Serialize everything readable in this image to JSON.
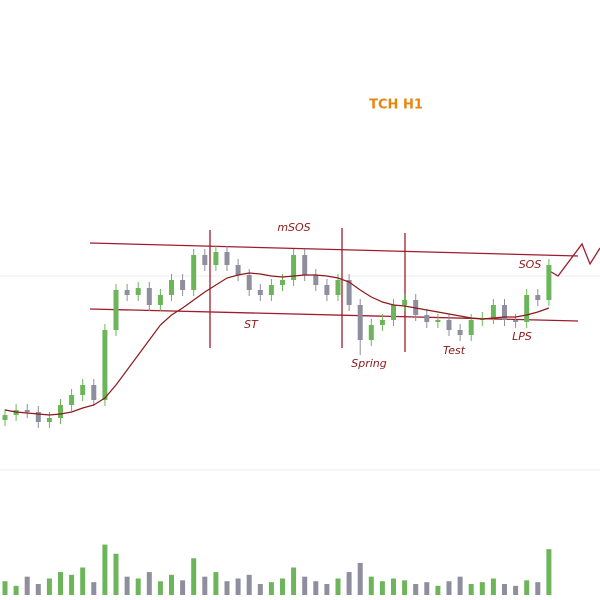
{
  "chart_data": {
    "type": "candlestick",
    "title": "TCH H1",
    "annotations": [
      "mSOS",
      "ST",
      "Spring",
      "Test",
      "LPS",
      "SOS"
    ],
    "ylim": [
      0,
      300
    ],
    "open": [
      60,
      65,
      70,
      68,
      58,
      62,
      75,
      85,
      95,
      80,
      150,
      190,
      185,
      192,
      175,
      185,
      200,
      190,
      225,
      215,
      228,
      215,
      205,
      190,
      185,
      195,
      200,
      225,
      205,
      195,
      185,
      200,
      175,
      140,
      155,
      160,
      175,
      180,
      165,
      158,
      160,
      150,
      145,
      160,
      162,
      175,
      160,
      158,
      185,
      180
    ],
    "high": [
      71,
      76,
      76,
      74,
      68,
      81,
      91,
      101,
      101,
      156,
      196,
      196,
      198,
      198,
      191,
      206,
      206,
      231,
      231,
      234,
      234,
      221,
      211,
      196,
      201,
      206,
      231,
      231,
      211,
      201,
      206,
      206,
      181,
      161,
      166,
      181,
      186,
      186,
      171,
      166,
      166,
      156,
      166,
      168,
      181,
      181,
      166,
      191,
      191,
      221
    ],
    "low": [
      54,
      59,
      62,
      52,
      52,
      56,
      69,
      79,
      74,
      74,
      144,
      179,
      179,
      169,
      169,
      179,
      184,
      184,
      209,
      209,
      209,
      199,
      184,
      179,
      179,
      189,
      194,
      199,
      189,
      179,
      179,
      169,
      125,
      134,
      149,
      154,
      169,
      159,
      152,
      152,
      144,
      139,
      139,
      154,
      156,
      154,
      152,
      152,
      174,
      174
    ],
    "close": [
      65,
      70,
      68,
      58,
      62,
      75,
      85,
      95,
      80,
      150,
      190,
      185,
      192,
      175,
      185,
      200,
      190,
      225,
      215,
      228,
      215,
      205,
      190,
      185,
      195,
      200,
      225,
      205,
      195,
      185,
      200,
      175,
      140,
      155,
      160,
      175,
      180,
      165,
      158,
      160,
      150,
      145,
      160,
      162,
      175,
      160,
      158,
      185,
      180,
      215
    ],
    "ma": [
      70,
      68,
      67,
      66,
      65,
      66,
      68,
      72,
      75,
      82,
      95,
      110,
      125,
      140,
      155,
      165,
      172,
      180,
      188,
      195,
      202,
      205,
      207,
      206,
      204,
      203,
      204,
      205,
      205,
      204,
      202,
      198,
      190,
      183,
      178,
      175,
      174,
      172,
      170,
      168,
      166,
      164,
      162,
      161,
      162,
      163,
      163,
      165,
      168,
      172
    ],
    "ma_color": "#8b1a1a",
    "volume": [
      15,
      10,
      20,
      12,
      18,
      25,
      22,
      30,
      14,
      55,
      45,
      20,
      18,
      25,
      15,
      22,
      16,
      40,
      20,
      25,
      15,
      18,
      22,
      12,
      14,
      18,
      30,
      20,
      15,
      12,
      18,
      25,
      35,
      20,
      15,
      18,
      16,
      12,
      14,
      10,
      15,
      20,
      12,
      14,
      18,
      12,
      10,
      16,
      14,
      50
    ],
    "volume_ylim": [
      0,
      60
    ],
    "up_color": "#6cb55a",
    "down_color": "#8e8e9e"
  }
}
